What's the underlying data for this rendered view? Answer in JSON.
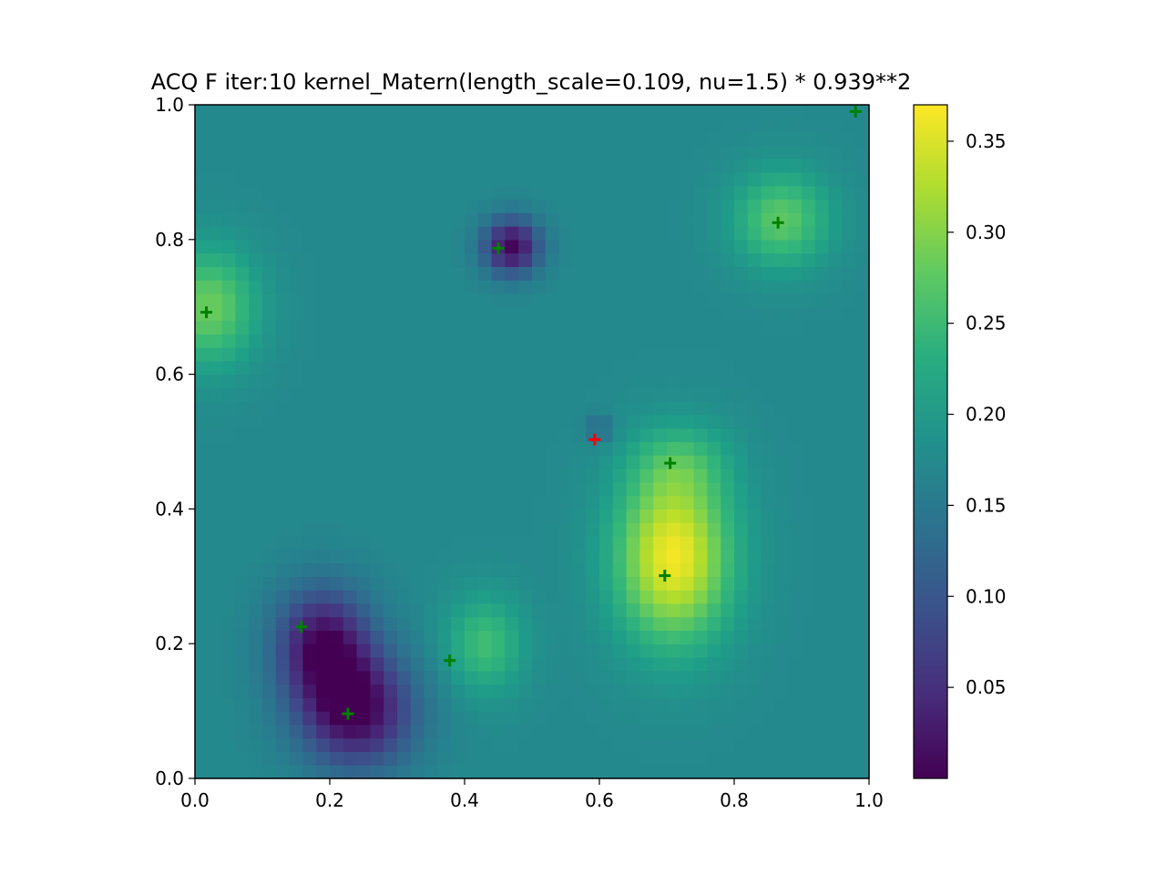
{
  "chart_data": {
    "type": "heatmap",
    "title": "ACQ F iter:10 kernel_Matern(length_scale=0.109, nu=1.5) * 0.939**2",
    "xlabel": "",
    "ylabel": "",
    "xlim": [
      0.0,
      1.0
    ],
    "ylim": [
      0.0,
      1.0
    ],
    "x_ticks": [
      "0.0",
      "0.2",
      "0.4",
      "0.6",
      "0.8",
      "1.0"
    ],
    "y_ticks": [
      "0.0",
      "0.2",
      "0.4",
      "0.6",
      "0.8",
      "1.0"
    ],
    "grid": false,
    "colormap": "viridis",
    "colorbar": {
      "range": [
        0.0,
        0.37
      ],
      "ticks": [
        "0.05",
        "0.10",
        "0.15",
        "0.20",
        "0.25",
        "0.30",
        "0.35"
      ]
    },
    "grid_resolution": 50,
    "field": {
      "base": 0.175,
      "bumps": [
        {
          "x": 0.02,
          "y": 0.7,
          "amp": 0.11,
          "sx": 0.05,
          "sy": 0.06
        },
        {
          "x": 0.87,
          "y": 0.83,
          "amp": 0.1,
          "sx": 0.05,
          "sy": 0.05
        },
        {
          "x": 0.71,
          "y": 0.33,
          "amp": 0.19,
          "sx": 0.06,
          "sy": 0.09
        },
        {
          "x": 0.72,
          "y": 0.47,
          "amp": 0.05,
          "sx": 0.05,
          "sy": 0.04
        },
        {
          "x": 0.43,
          "y": 0.2,
          "amp": 0.08,
          "sx": 0.04,
          "sy": 0.05
        },
        {
          "x": 0.47,
          "y": 0.79,
          "amp": -0.17,
          "sx": 0.03,
          "sy": 0.03
        },
        {
          "x": 0.19,
          "y": 0.2,
          "amp": -0.16,
          "sx": 0.05,
          "sy": 0.06
        },
        {
          "x": 0.24,
          "y": 0.1,
          "amp": -0.17,
          "sx": 0.06,
          "sy": 0.06
        },
        {
          "x": 0.6,
          "y": 0.52,
          "amp": -0.05,
          "sx": 0.015,
          "sy": 0.015
        }
      ]
    },
    "observed_points": {
      "color": "#008000",
      "marker": "+",
      "points": [
        {
          "x": 0.98,
          "y": 0.99
        },
        {
          "x": 0.865,
          "y": 0.825
        },
        {
          "x": 0.45,
          "y": 0.787
        },
        {
          "x": 0.017,
          "y": 0.692
        },
        {
          "x": 0.705,
          "y": 0.468
        },
        {
          "x": 0.697,
          "y": 0.301
        },
        {
          "x": 0.158,
          "y": 0.225
        },
        {
          "x": 0.378,
          "y": 0.175
        },
        {
          "x": 0.227,
          "y": 0.096
        }
      ]
    },
    "next_point": {
      "x": 0.593,
      "y": 0.503,
      "color": "#ff0000",
      "marker": "+"
    }
  }
}
